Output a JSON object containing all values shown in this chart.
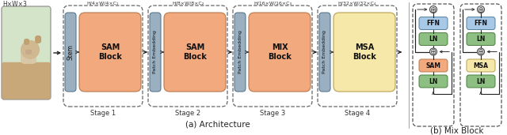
{
  "fig_width": 6.4,
  "fig_height": 1.71,
  "dpi": 100,
  "bg_color": "#ffffff",
  "colors": {
    "orange_block": "#F2A97E",
    "yellow_block": "#F5E8A8",
    "slate_block": "#9AAFC0",
    "green_block": "#8EBF82",
    "blue_ffn_block": "#A8C8E8",
    "photo_bg": "#C8B89A"
  },
  "caption_a": "(a) Architecture",
  "caption_b": "(b) Mix Block",
  "input_label": "H×W×3",
  "dim_labels": [
    "H/4×W/4×C₁",
    "H/8×W/8×C₂",
    "H/16×W/16×C₃",
    "H/32×W/32×C₄"
  ],
  "stage_labels": [
    "Stage 1",
    "Stage 2",
    "Stage 3",
    "Stage 4"
  ],
  "block_labels_main": [
    "SAM\nBlock",
    "SAM\nBlock",
    "MIX\nBlock",
    "MSA\nBlock"
  ],
  "pe_label": "Patch Embedding",
  "stem_label": "Stem"
}
